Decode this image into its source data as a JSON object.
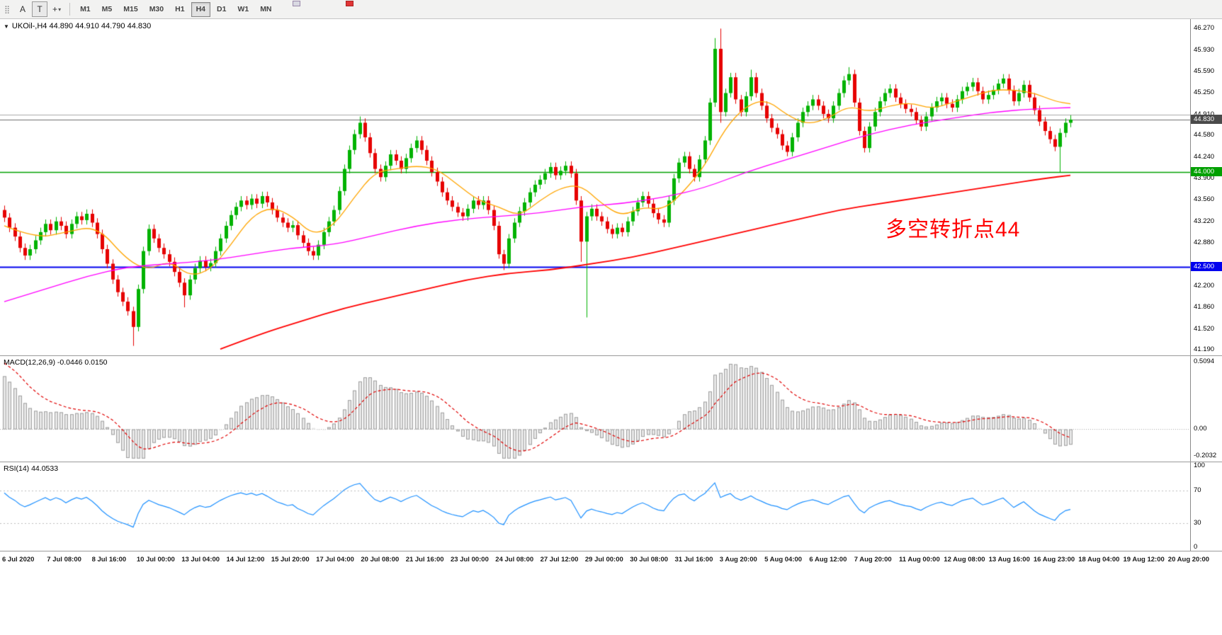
{
  "toolbar": {
    "font_tool": "A",
    "text_tool": "T",
    "crosshair_tool": "+",
    "timeframes": [
      "M1",
      "M5",
      "M15",
      "M30",
      "H1",
      "H4",
      "D1",
      "W1",
      "MN"
    ],
    "active_timeframe": "H4"
  },
  "header": {
    "title": "UKOil-,H4  44.890 44.910 44.790 44.830"
  },
  "annotation": {
    "text": "多空转折点44",
    "color": "#FF0000"
  },
  "macd_panel": {
    "title": "MACD(12,26,9) -0.0446 0.0150"
  },
  "rsi_panel": {
    "title": "RSI(14) 44.0533"
  },
  "chart_data": {
    "type": "candlestick",
    "symbol": "UKOil-",
    "timeframe": "H4",
    "current_bar": {
      "open": 44.89,
      "high": 44.91,
      "low": 44.79,
      "close": 44.83
    },
    "y_range": [
      41.1,
      46.42
    ],
    "y_ticks": [
      "46.270",
      "45.930",
      "45.590",
      "45.250",
      "44.910",
      "44.580",
      "44.240",
      "43.900",
      "43.560",
      "43.220",
      "42.880",
      "42.200",
      "41.860",
      "41.520",
      "41.190"
    ],
    "y_badges": [
      {
        "value": "44.830",
        "price": 44.83,
        "color": "#4a4a4a",
        "name": "bid-price-badge"
      },
      {
        "value": "44.000",
        "price": 44.0,
        "color": "#00A000",
        "name": "green-level-badge"
      },
      {
        "value": "42.500",
        "price": 42.5,
        "color": "#0000EE",
        "name": "blue-level-badge"
      }
    ],
    "x_ticks": [
      "6 Jul 2020",
      "7 Jul 08:00",
      "8 Jul 16:00",
      "10 Jul 00:00",
      "13 Jul 04:00",
      "14 Jul 12:00",
      "15 Jul 20:00",
      "17 Jul 04:00",
      "20 Jul 08:00",
      "21 Jul 16:00",
      "23 Jul 00:00",
      "24 Jul 08:00",
      "27 Jul 12:00",
      "29 Jul 00:00",
      "30 Jul 08:00",
      "31 Jul 16:00",
      "3 Aug 20:00",
      "5 Aug 04:00",
      "6 Aug 12:00",
      "7 Aug 20:00",
      "11 Aug 00:00",
      "12 Aug 08:00",
      "13 Aug 16:00",
      "16 Aug 23:00",
      "18 Aug 04:00",
      "19 Aug 12:00",
      "20 Aug 20:00"
    ],
    "first_open": 43.4,
    "default_wick": 0.07,
    "closes": [
      43.28,
      43.12,
      42.98,
      42.8,
      42.68,
      42.78,
      42.92,
      43.05,
      43.18,
      43.08,
      43.22,
      43.15,
      43.02,
      43.18,
      43.3,
      43.24,
      43.34,
      43.2,
      43.02,
      42.78,
      42.55,
      42.3,
      42.1,
      41.95,
      41.8,
      41.55,
      42.15,
      42.75,
      43.1,
      42.95,
      42.8,
      42.7,
      42.58,
      42.42,
      42.25,
      42.05,
      42.3,
      42.48,
      42.6,
      42.5,
      42.56,
      42.75,
      42.95,
      43.15,
      43.32,
      43.45,
      43.55,
      43.48,
      43.58,
      43.5,
      43.62,
      43.52,
      43.4,
      43.28,
      43.2,
      43.12,
      43.16,
      43.0,
      42.88,
      42.75,
      42.68,
      42.85,
      43.05,
      43.22,
      43.4,
      43.7,
      44.05,
      44.35,
      44.6,
      44.78,
      44.55,
      44.3,
      44.05,
      43.92,
      44.1,
      44.28,
      44.18,
      44.05,
      44.22,
      44.38,
      44.5,
      44.35,
      44.18,
      44.0,
      43.85,
      43.68,
      43.55,
      43.45,
      43.36,
      43.3,
      43.42,
      43.55,
      43.48,
      43.55,
      43.4,
      43.15,
      42.7,
      42.55,
      42.95,
      43.2,
      43.38,
      43.52,
      43.68,
      43.8,
      43.88,
      43.98,
      44.08,
      43.95,
      44.02,
      44.1,
      43.98,
      43.55,
      42.9,
      43.3,
      43.42,
      43.3,
      43.22,
      43.1,
      43.02,
      43.12,
      43.05,
      43.22,
      43.38,
      43.52,
      43.62,
      43.5,
      43.35,
      43.25,
      43.2,
      43.55,
      43.9,
      44.15,
      44.25,
      44.05,
      43.92,
      44.2,
      44.5,
      45.1,
      45.95,
      44.95,
      45.25,
      45.5,
      45.15,
      44.95,
      45.2,
      45.5,
      45.25,
      45.05,
      44.85,
      44.7,
      44.6,
      44.42,
      44.32,
      44.55,
      44.78,
      44.95,
      45.05,
      45.15,
      45.05,
      44.92,
      44.85,
      45.05,
      45.25,
      45.45,
      45.55,
      45.1,
      44.65,
      44.38,
      44.72,
      44.95,
      45.12,
      45.25,
      45.32,
      45.18,
      45.08,
      45.0,
      44.95,
      44.82,
      44.72,
      44.88,
      45.02,
      45.12,
      45.18,
      45.08,
      45.02,
      45.15,
      45.28,
      45.35,
      45.42,
      45.28,
      45.15,
      45.22,
      45.3,
      45.4,
      45.48,
      45.3,
      45.12,
      45.25,
      45.38,
      45.18,
      44.98,
      44.8,
      44.65,
      44.52,
      44.4,
      44.62,
      44.78,
      44.83
    ],
    "wick_overrides": {
      "25": {
        "low": 41.25
      },
      "35": {
        "low": 41.86
      },
      "69": {
        "high": 44.88
      },
      "97": {
        "low": 42.45
      },
      "112": {
        "low": 42.58
      },
      "113": {
        "low": 41.7
      },
      "138": {
        "high": 46.12
      },
      "139": {
        "high": 46.27,
        "low": 44.78
      },
      "145": {
        "high": 45.62
      },
      "164": {
        "high": 45.66
      },
      "205": {
        "low": 44.0
      }
    },
    "candle_colors": {
      "up": "#00B200",
      "down": "#E60000"
    },
    "h_levels": [
      {
        "price": 44.91,
        "color": "#ababab",
        "width": 1,
        "name": "ask-line"
      },
      {
        "price": 44.83,
        "color": "#6e6e6e",
        "width": 1,
        "name": "bid-line"
      },
      {
        "price": 44.0,
        "color": "#00A000",
        "width": 1.4,
        "name": "green-support-line"
      },
      {
        "price": 42.5,
        "color": "#0000EE",
        "width": 2,
        "name": "blue-support-line"
      }
    ],
    "ma_lines": [
      {
        "name": "fast-ma",
        "color": "#FFA500",
        "width": 1.3,
        "points": [
          [
            0,
            43.15
          ],
          [
            6,
            42.95
          ],
          [
            12,
            43.05
          ],
          [
            18,
            43.15
          ],
          [
            24,
            42.6
          ],
          [
            28,
            42.45
          ],
          [
            32,
            42.6
          ],
          [
            36,
            42.35
          ],
          [
            40,
            42.45
          ],
          [
            44,
            42.85
          ],
          [
            48,
            43.3
          ],
          [
            52,
            43.45
          ],
          [
            56,
            43.3
          ],
          [
            60,
            43.0
          ],
          [
            64,
            43.15
          ],
          [
            68,
            43.6
          ],
          [
            72,
            44.0
          ],
          [
            76,
            44.05
          ],
          [
            80,
            44.1
          ],
          [
            84,
            44.05
          ],
          [
            88,
            43.8
          ],
          [
            92,
            43.55
          ],
          [
            96,
            43.45
          ],
          [
            100,
            43.3
          ],
          [
            104,
            43.55
          ],
          [
            108,
            43.75
          ],
          [
            112,
            43.8
          ],
          [
            116,
            43.5
          ],
          [
            120,
            43.3
          ],
          [
            124,
            43.45
          ],
          [
            128,
            43.4
          ],
          [
            132,
            43.7
          ],
          [
            136,
            44.1
          ],
          [
            140,
            44.7
          ],
          [
            144,
            45.05
          ],
          [
            148,
            45.15
          ],
          [
            152,
            44.9
          ],
          [
            156,
            44.75
          ],
          [
            160,
            44.85
          ],
          [
            164,
            45.05
          ],
          [
            168,
            44.95
          ],
          [
            172,
            45.05
          ],
          [
            176,
            45.1
          ],
          [
            180,
            45.0
          ],
          [
            184,
            45.1
          ],
          [
            188,
            45.2
          ],
          [
            192,
            45.3
          ],
          [
            196,
            45.3
          ],
          [
            200,
            45.25
          ],
          [
            204,
            45.12
          ],
          [
            207,
            45.08
          ]
        ]
      },
      {
        "name": "mid-ma",
        "color": "#FF00FF",
        "width": 1.3,
        "points": [
          [
            0,
            41.95
          ],
          [
            8,
            42.15
          ],
          [
            16,
            42.35
          ],
          [
            24,
            42.5
          ],
          [
            32,
            42.55
          ],
          [
            40,
            42.6
          ],
          [
            48,
            42.7
          ],
          [
            56,
            42.8
          ],
          [
            64,
            42.85
          ],
          [
            72,
            43.0
          ],
          [
            80,
            43.15
          ],
          [
            88,
            43.25
          ],
          [
            96,
            43.3
          ],
          [
            104,
            43.35
          ],
          [
            112,
            43.45
          ],
          [
            120,
            43.5
          ],
          [
            128,
            43.6
          ],
          [
            136,
            43.75
          ],
          [
            144,
            44.0
          ],
          [
            152,
            44.2
          ],
          [
            160,
            44.4
          ],
          [
            168,
            44.6
          ],
          [
            176,
            44.75
          ],
          [
            184,
            44.85
          ],
          [
            192,
            44.95
          ],
          [
            200,
            45.0
          ],
          [
            207,
            45.02
          ]
        ]
      },
      {
        "name": "slow-ma",
        "color": "#FF0000",
        "width": 1.8,
        "points": [
          [
            42,
            41.2
          ],
          [
            50,
            41.45
          ],
          [
            58,
            41.65
          ],
          [
            66,
            41.85
          ],
          [
            74,
            42.0
          ],
          [
            82,
            42.15
          ],
          [
            90,
            42.3
          ],
          [
            98,
            42.4
          ],
          [
            106,
            42.45
          ],
          [
            114,
            42.55
          ],
          [
            122,
            42.65
          ],
          [
            130,
            42.8
          ],
          [
            138,
            42.95
          ],
          [
            146,
            43.1
          ],
          [
            154,
            43.25
          ],
          [
            162,
            43.4
          ],
          [
            170,
            43.5
          ],
          [
            178,
            43.6
          ],
          [
            186,
            43.7
          ],
          [
            194,
            43.8
          ],
          [
            202,
            43.9
          ],
          [
            207,
            43.95
          ]
        ]
      }
    ],
    "indicators": {
      "macd": {
        "fast": 12,
        "slow": 26,
        "signal": 9,
        "current_values": [
          -0.0446,
          0.015
        ],
        "range": [
          -0.2032,
          0.5094
        ],
        "ticks": [
          "0.5094",
          "0.00",
          "-0.2032"
        ],
        "hist_fill": "#e7e7e7",
        "hist_stroke": "#9f9f9f",
        "signal_color": "#E00000",
        "seed_offset": 0.4,
        "signal_seed": 0.5
      },
      "rsi": {
        "period": 14,
        "current_value": 44.0533,
        "range": [
          0,
          100
        ],
        "levels": [
          70,
          30
        ],
        "ticks": [
          "100",
          "70",
          "30",
          "0"
        ],
        "color": "#1E90FF"
      }
    }
  }
}
